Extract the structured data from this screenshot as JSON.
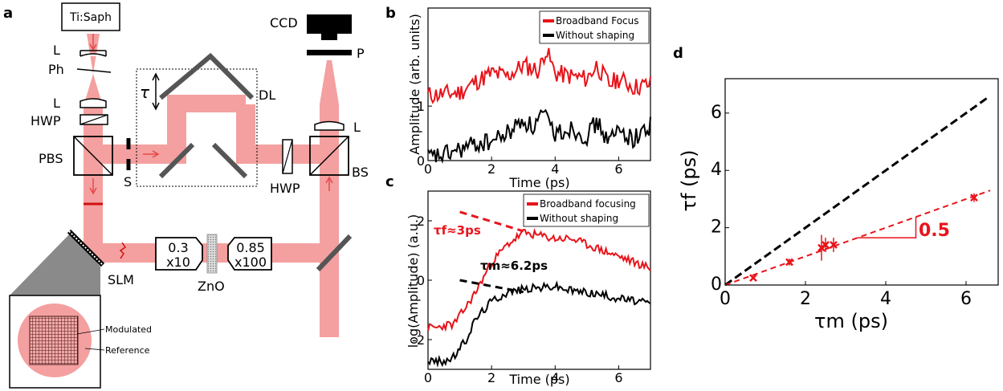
{
  "panels": {
    "a": "a",
    "b": "b",
    "c": "c",
    "d": "d"
  },
  "setup": {
    "laser": "Ti:Saph",
    "lens": "L",
    "pinhole": "Ph",
    "hwp": "HWP",
    "pbs": "PBS",
    "shutter": "S",
    "delay_line": "DL",
    "tau": "τ",
    "beamsplitter": "BS",
    "polarizer": "P",
    "camera": "CCD",
    "slm": "SLM",
    "sample": "ZnO",
    "obj1_na": "0.3",
    "obj1_mag": "x10",
    "obj2_na": "0.85",
    "obj2_mag": "x100",
    "inset_modulated": "Modulated",
    "inset_reference": "Reference"
  },
  "colors": {
    "red": "#e8141b",
    "beam": "#f4a0a0",
    "black": "#000000",
    "gray": "#595959"
  },
  "chart_data": [
    {
      "panel": "b",
      "type": "line",
      "xlabel": "Time (ps)",
      "ylabel": "Amplitude (arb. units)",
      "xlim": [
        0,
        7
      ],
      "ylim": [
        0,
        2.8
      ],
      "xticks": [
        "0",
        "2",
        "4",
        "6"
      ],
      "yticks": [
        "0",
        "1"
      ],
      "legend_position": "top-right",
      "series": [
        {
          "name": "Broadband Focus",
          "color": "#e8141b",
          "x": [
            0,
            0.5,
            1.0,
            1.5,
            2.0,
            2.5,
            3.0,
            3.5,
            3.7,
            4.0,
            4.5,
            5.0,
            5.3,
            5.7,
            6.0,
            6.5,
            7.0
          ],
          "y": [
            1.2,
            1.22,
            1.25,
            1.45,
            1.6,
            1.55,
            1.75,
            1.65,
            2.05,
            1.6,
            1.55,
            1.5,
            1.75,
            1.4,
            1.5,
            1.35,
            1.4
          ]
        },
        {
          "name": "Without shaping",
          "color": "#000000",
          "x": [
            0,
            0.5,
            1.0,
            1.5,
            2.0,
            2.5,
            3.0,
            3.3,
            3.6,
            4.0,
            4.5,
            5.0,
            5.3,
            5.7,
            6.0,
            6.5,
            7.0
          ],
          "y": [
            0.05,
            0.1,
            0.2,
            0.3,
            0.35,
            0.5,
            0.75,
            0.6,
            0.85,
            0.5,
            0.6,
            0.45,
            0.7,
            0.35,
            0.55,
            0.4,
            0.65
          ]
        }
      ]
    },
    {
      "panel": "c",
      "type": "line",
      "xlabel": "Time (ps)",
      "ylabel": "log(Amplitude) (a.u.)",
      "xlim": [
        0,
        7
      ],
      "ylim": [
        -3,
        3
      ],
      "xticks": [
        "0",
        "2",
        "4",
        "6"
      ],
      "yticks": [
        "-2",
        "0",
        "2"
      ],
      "legend_position": "top-right",
      "series": [
        {
          "name": "Broadband focusing",
          "color": "#e8141b",
          "x": [
            0,
            0.3,
            0.6,
            0.8,
            1.0,
            1.2,
            1.5,
            1.8,
            2.0,
            2.5,
            3.0,
            3.5,
            4.0,
            4.5,
            5.0,
            5.5,
            6.0,
            6.5,
            7.0
          ],
          "y": [
            -1.6,
            -1.6,
            -1.5,
            -1.5,
            -1.2,
            -0.9,
            -0.4,
            0.2,
            0.6,
            1.2,
            1.6,
            1.5,
            1.4,
            1.4,
            1.2,
            1.0,
            0.8,
            0.6,
            0.4
          ]
        },
        {
          "name": "Without shaping",
          "color": "#000000",
          "x": [
            0,
            0.3,
            0.6,
            0.8,
            1.0,
            1.2,
            1.5,
            2.0,
            2.5,
            3.0,
            3.5,
            4.0,
            4.5,
            5.0,
            5.5,
            6.0,
            6.5,
            7.0
          ],
          "y": [
            -2.7,
            -2.75,
            -2.7,
            -2.6,
            -2.3,
            -2.0,
            -1.3,
            -0.7,
            -0.4,
            -0.3,
            -0.25,
            -0.2,
            -0.35,
            -0.4,
            -0.5,
            -0.6,
            -0.7,
            -0.8
          ]
        }
      ],
      "annotations": [
        {
          "text": "τf≈3ps",
          "color": "#e8141b",
          "fit_line": [
            [
              1.0,
              2.3
            ],
            [
              3.0,
              1.65
            ]
          ]
        },
        {
          "text": "τm≈6.2ps",
          "color": "#000000",
          "fit_line": [
            [
              1.0,
              0.0
            ],
            [
              3.0,
              -0.4
            ]
          ]
        }
      ]
    },
    {
      "panel": "d",
      "type": "scatter",
      "xlabel": "τm (ps)",
      "ylabel": "τf (ps)",
      "xlim": [
        0,
        6.8
      ],
      "ylim": [
        0,
        7.2
      ],
      "xticks": [
        "0",
        "2",
        "4",
        "6"
      ],
      "yticks": [
        "0",
        "2",
        "4",
        "6"
      ],
      "grid": false,
      "series": [
        {
          "name": "",
          "color": "#e8141b",
          "x": [
            0.7,
            1.6,
            2.4,
            2.5,
            2.7,
            6.2
          ],
          "y": [
            0.25,
            0.8,
            1.3,
            1.4,
            1.4,
            3.05
          ],
          "yerr": [
            0.05,
            0.12,
            0.45,
            0.25,
            0.25,
            0.15
          ]
        }
      ],
      "reference_lines": [
        {
          "label": "slope 1",
          "color": "#000000",
          "slope": 1.0
        },
        {
          "label": "0.5",
          "color": "#e8141b",
          "slope": 0.5
        }
      ],
      "slope_annotation": "0.5"
    }
  ]
}
